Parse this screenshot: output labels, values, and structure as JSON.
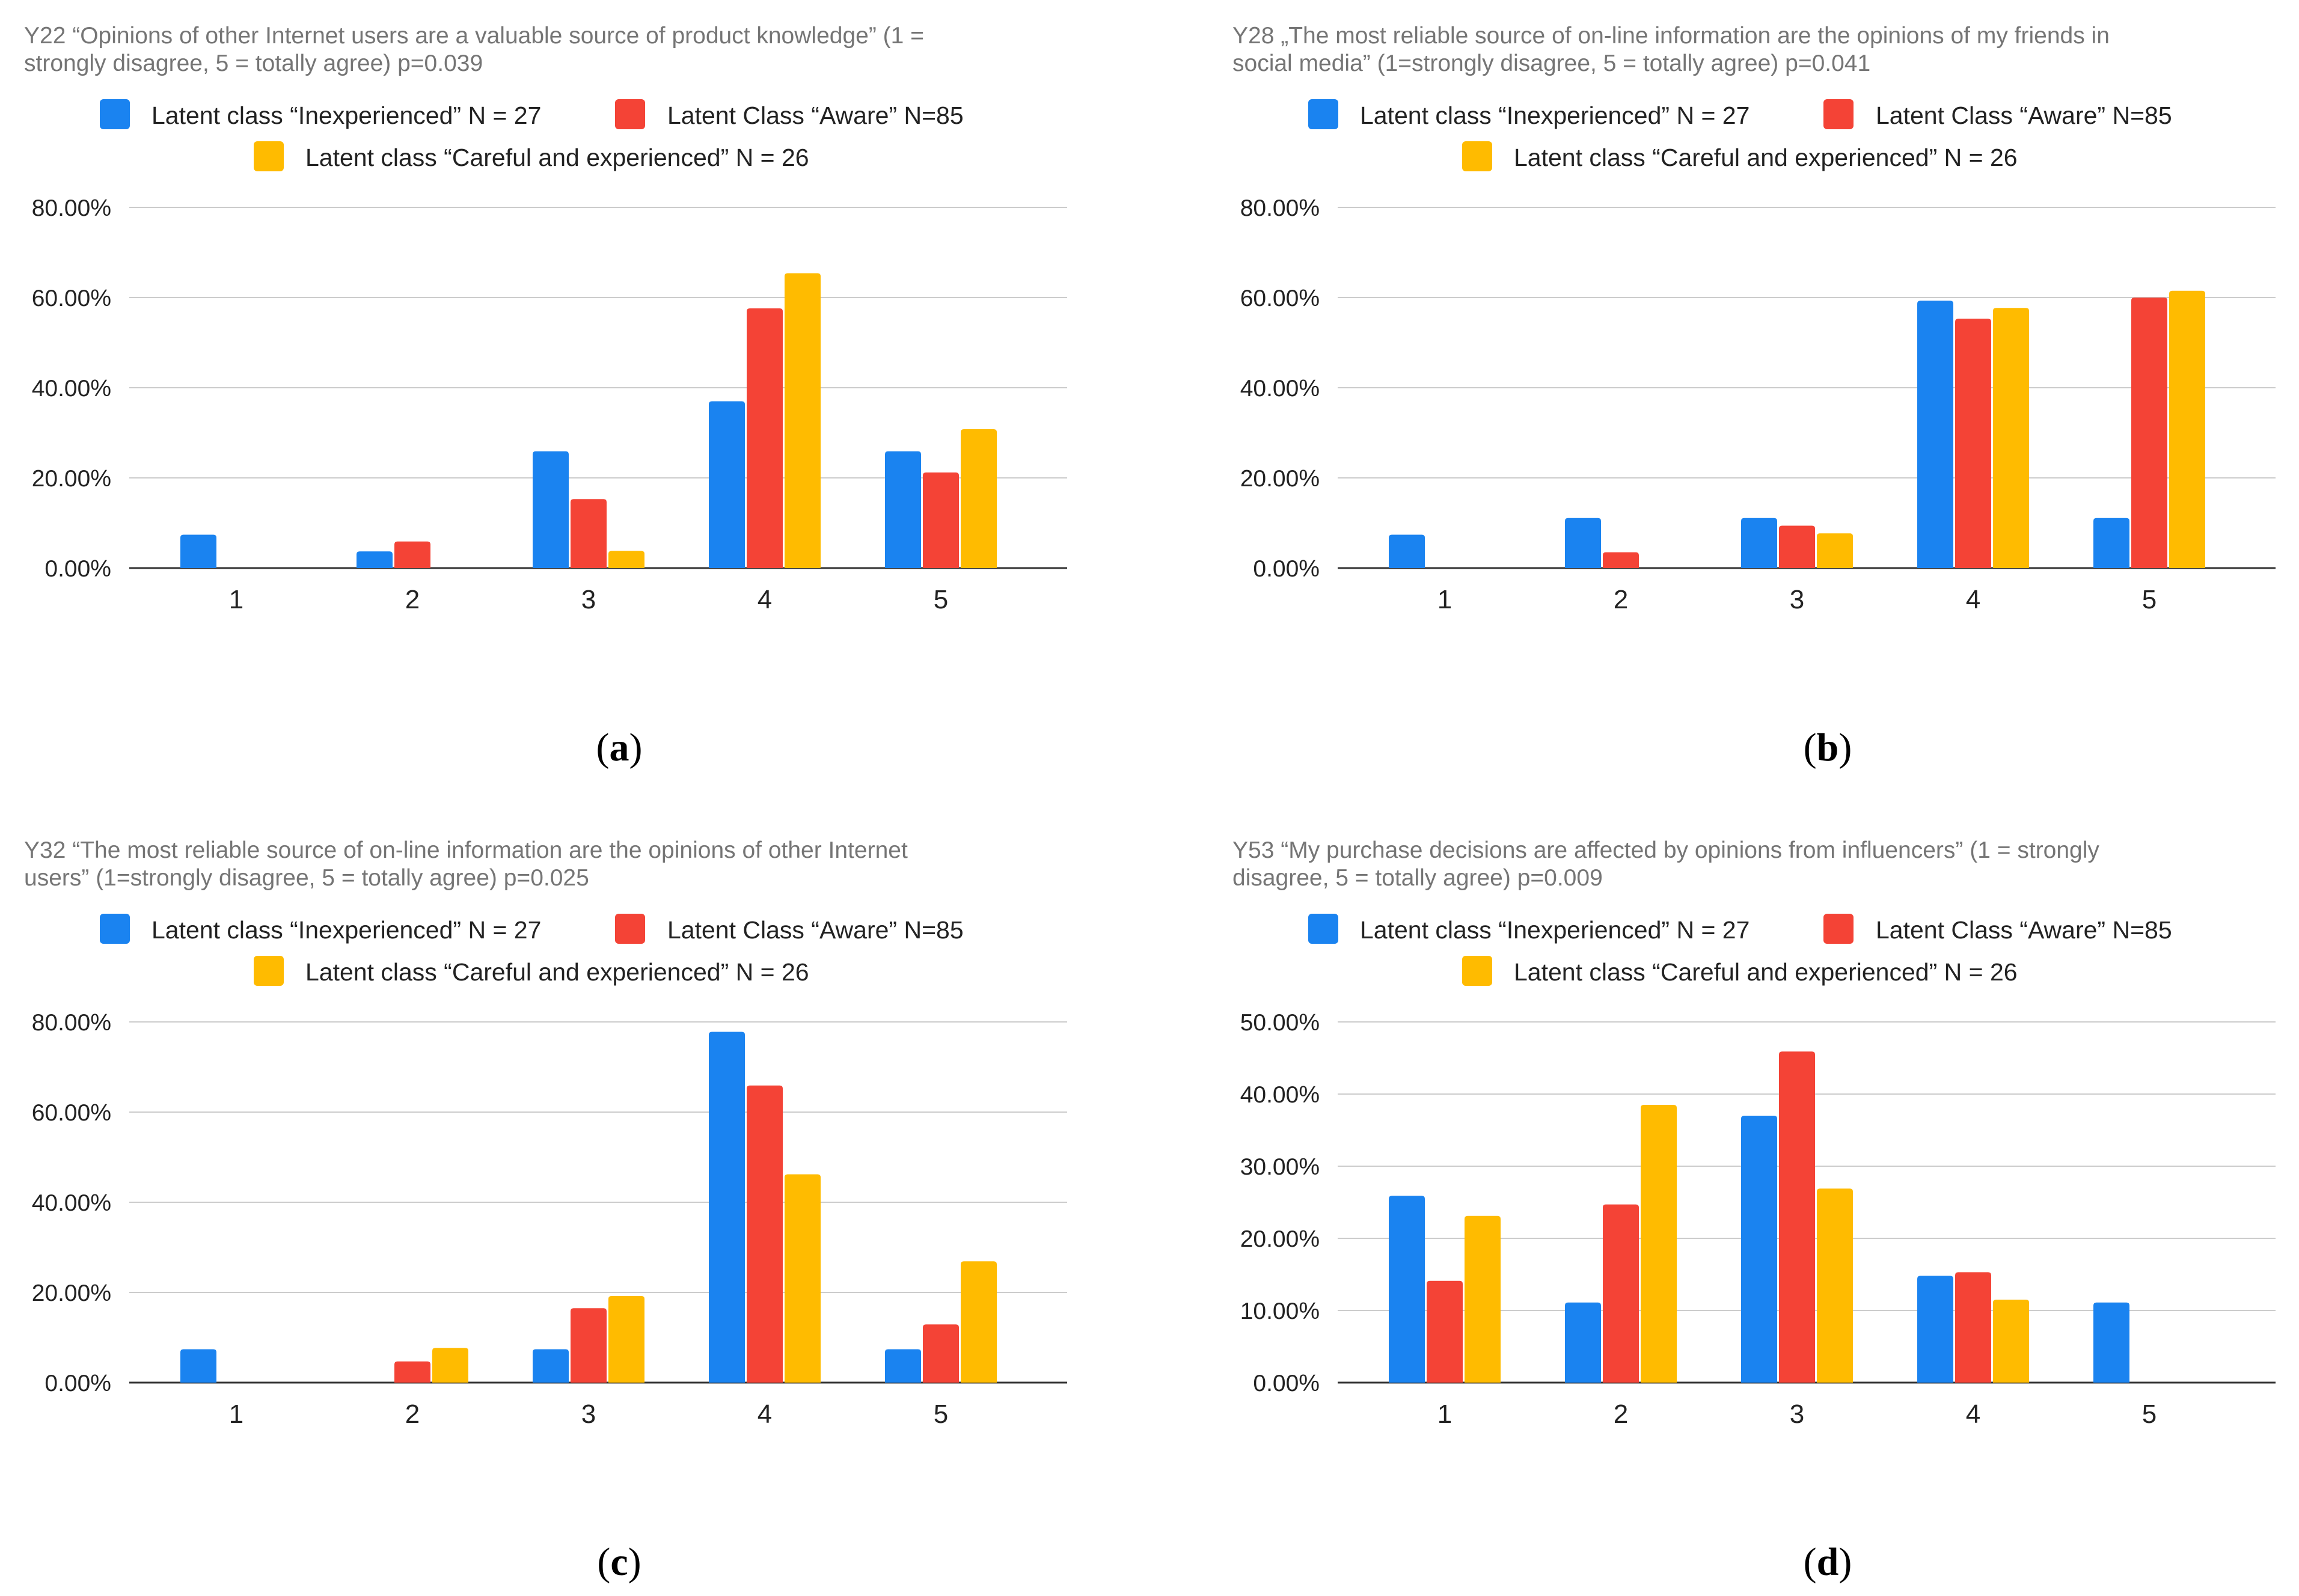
{
  "series_colors": [
    "#1a83f0",
    "#f44336",
    "#ffbb00"
  ],
  "chart_data": [
    {
      "type": "bar",
      "id": "a",
      "caption_letter": "a",
      "title_lines": [
        "Y22 “Opinions of other Internet users are a valuable source of product knowledge” (1 =",
        "strongly disagree, 5 = totally agree) p=0.039"
      ],
      "legend": {
        "s0": "Latent class   “Inexperienced” N = 27",
        "s1": "Latent Class “Aware”  N=85",
        "s2": "Latent class “Careful and experienced” N = 26"
      },
      "categories": [
        "1",
        "2",
        "3",
        "4",
        "5"
      ],
      "yticks": [
        "0.00%",
        "20.00%",
        "40.00%",
        "60.00%",
        "80.00%"
      ],
      "ylim": [
        0,
        80
      ],
      "series": [
        {
          "name": "Latent class   “Inexperienced” N = 27",
          "values": [
            7.4,
            3.7,
            25.9,
            37.0,
            25.9
          ]
        },
        {
          "name": "Latent Class “Aware”  N=85",
          "values": [
            0,
            5.9,
            15.3,
            57.6,
            21.2
          ]
        },
        {
          "name": "Latent class “Careful and experienced” N = 26",
          "values": [
            0,
            0,
            3.8,
            65.4,
            30.8
          ]
        }
      ]
    },
    {
      "type": "bar",
      "id": "b",
      "caption_letter": "b",
      "title_lines": [
        "Y28 „The most reliable source of on-line information are the opinions of my friends in",
        "social media” (1=strongly disagree, 5 = totally agree) p=0.041"
      ],
      "legend": {
        "s0": "Latent class   “Inexperienced” N = 27",
        "s1": "Latent Class “Aware”  N=85",
        "s2": "Latent class “Careful and experienced” N = 26"
      },
      "categories": [
        "1",
        "2",
        "3",
        "4",
        "5"
      ],
      "yticks": [
        "0.00%",
        "20.00%",
        "40.00%",
        "60.00%",
        "80.00%"
      ],
      "ylim": [
        0,
        80
      ],
      "series": [
        {
          "name": "Latent class   “Inexperienced” N = 27",
          "values": [
            7.4,
            11.1,
            11.1,
            59.3,
            11.1
          ]
        },
        {
          "name": "Latent Class “Aware”  N=85",
          "values": [
            0,
            3.5,
            9.4,
            55.3,
            60.0
          ]
        },
        {
          "name": "Latent class “Careful and experienced” N = 26",
          "values": [
            0,
            0,
            7.7,
            57.7,
            61.5
          ]
        }
      ]
    },
    {
      "type": "bar",
      "id": "c",
      "caption_letter": "c",
      "title_lines": [
        "Y32 “The most reliable source of on-line information are the opinions of other Internet",
        "users” (1=strongly disagree, 5 = totally agree) p=0.025"
      ],
      "legend": {
        "s0": "Latent class   “Inexperienced” N = 27",
        "s1": "Latent Class “Aware”  N=85",
        "s2": "Latent class “Careful and experienced” N = 26"
      },
      "categories": [
        "1",
        "2",
        "3",
        "4",
        "5"
      ],
      "yticks": [
        "0.00%",
        "20.00%",
        "40.00%",
        "60.00%",
        "80.00%"
      ],
      "ylim": [
        0,
        80
      ],
      "series": [
        {
          "name": "Latent class   “Inexperienced” N = 27",
          "values": [
            7.4,
            0,
            7.4,
            77.8,
            7.4
          ]
        },
        {
          "name": "Latent Class “Aware”  N=85",
          "values": [
            0,
            4.7,
            16.5,
            65.9,
            12.9
          ]
        },
        {
          "name": "Latent class “Careful and experienced” N = 26",
          "values": [
            0,
            7.7,
            19.2,
            46.2,
            26.9
          ]
        }
      ]
    },
    {
      "type": "bar",
      "id": "d",
      "caption_letter": "d",
      "title_lines": [
        "Y53 “My purchase decisions are affected by opinions from influencers” (1 = strongly",
        "disagree, 5 = totally agree) p=0.009"
      ],
      "legend": {
        "s0": "Latent class   “Inexperienced” N = 27",
        "s1": "Latent Class “Aware”  N=85",
        "s2": "Latent class “Careful and experienced” N = 26"
      },
      "categories": [
        "1",
        "2",
        "3",
        "4",
        "5"
      ],
      "yticks": [
        "0.00%",
        "10.00%",
        "20.00%",
        "30.00%",
        "40.00%",
        "50.00%"
      ],
      "ylim": [
        0,
        50
      ],
      "series": [
        {
          "name": "Latent class   “Inexperienced” N = 27",
          "values": [
            25.9,
            11.1,
            37.0,
            14.8,
            11.1
          ]
        },
        {
          "name": "Latent Class “Aware”  N=85",
          "values": [
            14.1,
            24.7,
            45.9,
            15.3,
            0
          ]
        },
        {
          "name": "Latent class “Careful and experienced” N = 26",
          "values": [
            23.1,
            38.5,
            26.9,
            11.5,
            0
          ]
        }
      ]
    }
  ]
}
